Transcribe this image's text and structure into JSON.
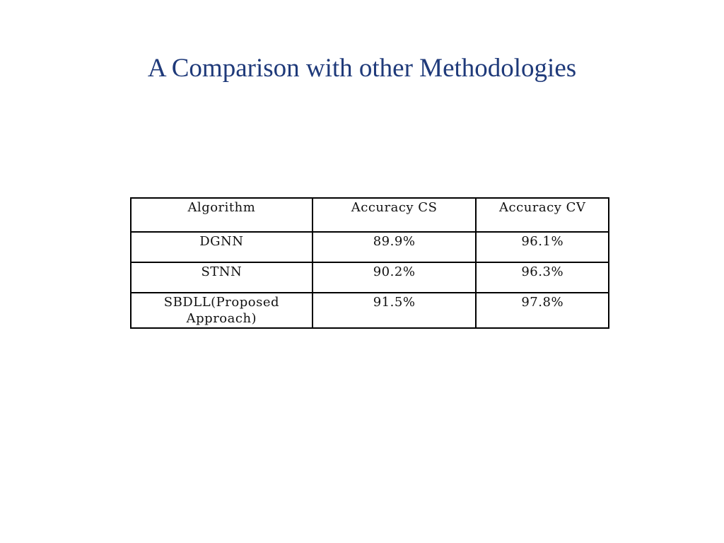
{
  "slide": {
    "title": "A Comparison with other Methodologies"
  },
  "table": {
    "headers": [
      "Algorithm",
      "Accuracy CS",
      "Accuracy CV"
    ],
    "rows": [
      [
        "DGNN",
        "89.9%",
        "96.1%"
      ],
      [
        "STNN",
        "90.2%",
        "96.3%"
      ],
      [
        "SBDLL(Proposed Approach)",
        "91.5%",
        "97.8%"
      ]
    ]
  }
}
